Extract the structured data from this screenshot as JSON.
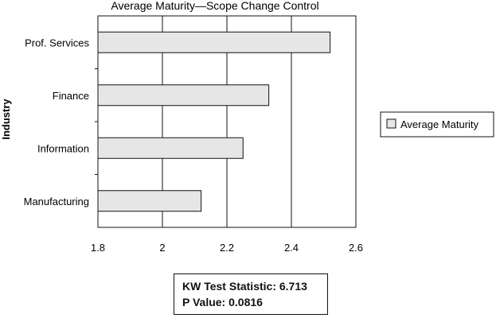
{
  "chart_data": {
    "type": "bar",
    "orientation": "horizontal",
    "title": "Average Maturity—Scope Change Control",
    "ylabel": "Industry",
    "xlabel": "",
    "categories": [
      "Prof. Services",
      "Finance",
      "Information",
      "Manufacturing"
    ],
    "series": [
      {
        "name": "Average Maturity",
        "values": [
          2.52,
          2.33,
          2.25,
          2.12
        ],
        "color": "#e6e6e6"
      }
    ],
    "xlim": [
      1.8,
      2.6
    ],
    "xticks": [
      1.8,
      2.0,
      2.2,
      2.4,
      2.6
    ],
    "tick_labels": [
      "1.8",
      "2",
      "2.2",
      "2.4",
      "2.6"
    ],
    "grid": true,
    "legend_position": "right"
  },
  "stats": {
    "kw_line": "KW Test Statistic: 6.713",
    "p_line": "P Value: 0.0816"
  }
}
